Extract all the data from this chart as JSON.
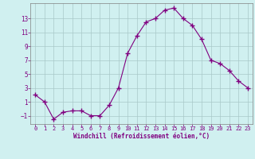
{
  "x": [
    0,
    1,
    2,
    3,
    4,
    5,
    6,
    7,
    8,
    9,
    10,
    11,
    12,
    13,
    14,
    15,
    16,
    17,
    18,
    19,
    20,
    21,
    22,
    23
  ],
  "y": [
    2,
    1,
    -1.5,
    -0.5,
    -0.3,
    -0.3,
    -1,
    -1,
    0.5,
    3,
    8,
    10.5,
    12.5,
    13,
    14.2,
    14.5,
    13,
    12,
    10,
    7,
    6.5,
    5.5,
    4,
    3
  ],
  "line_color": "#800080",
  "marker": "+",
  "marker_color": "#800080",
  "bg_color": "#d0f0f0",
  "grid_color": "#a8c8c8",
  "xlabel": "Windchill (Refroidissement éolien,°C)",
  "xlabel_color": "#800080",
  "tick_color": "#800080",
  "yticks": [
    -1,
    1,
    3,
    5,
    7,
    9,
    11,
    13
  ],
  "xticks": [
    0,
    1,
    2,
    3,
    4,
    5,
    6,
    7,
    8,
    9,
    10,
    11,
    12,
    13,
    14,
    15,
    16,
    17,
    18,
    19,
    20,
    21,
    22,
    23
  ],
  "ylim": [
    -2.2,
    15.2
  ],
  "xlim": [
    -0.5,
    23.5
  ],
  "spine_color": "#808080"
}
